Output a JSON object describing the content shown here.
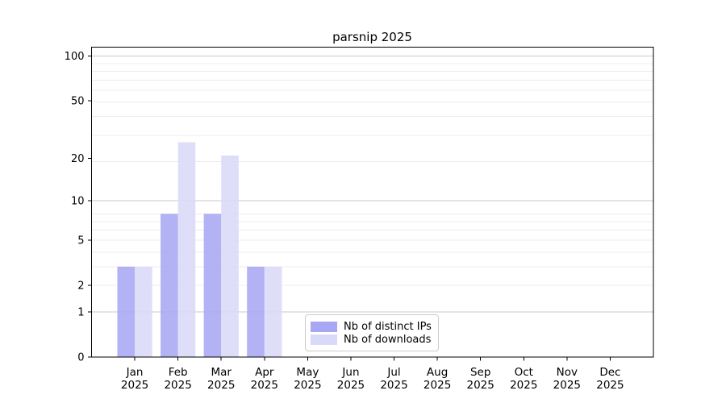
{
  "chart_data": {
    "type": "bar",
    "title": "parsnip 2025",
    "categories": [
      "Jan",
      "Feb",
      "Mar",
      "Apr",
      "May",
      "Jun",
      "Jul",
      "Aug",
      "Sep",
      "Oct",
      "Nov",
      "Dec"
    ],
    "category_year": "2025",
    "series": [
      {
        "name": "Nb of distinct IPs",
        "color": "#a7a7f4",
        "values": [
          3,
          8,
          8,
          3,
          0,
          0,
          0,
          0,
          0,
          0,
          0,
          0
        ]
      },
      {
        "name": "Nb of downloads",
        "color": "#d9d9f8",
        "values": [
          3,
          26,
          21,
          3,
          0,
          0,
          0,
          0,
          0,
          0,
          0,
          0
        ]
      }
    ],
    "xlabel": "",
    "ylabel": "",
    "yscale": "log1p",
    "y_ticks": [
      0,
      1,
      2,
      5,
      10,
      20,
      50,
      100
    ],
    "ylim": [
      0,
      115
    ],
    "grid": {
      "on": true,
      "major_values": [
        1,
        10,
        100
      ],
      "minor_log1p_positions": [
        3,
        4,
        5,
        6,
        7,
        8,
        9,
        20,
        30,
        40,
        50,
        60,
        70,
        80,
        90
      ],
      "major_color": "#c9c9c9",
      "minor_color": "#ececec"
    },
    "legend_position": "lower center",
    "axis_color": "#000000",
    "text_color": "#000000",
    "background_color": "#ffffff"
  }
}
